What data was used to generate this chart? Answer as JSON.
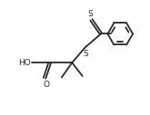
{
  "bg_color": "#ffffff",
  "line_color": "#2a2a2a",
  "line_width": 1.3,
  "text_color": "#2a2a2a",
  "font_size": 6.5,
  "figsize": [
    1.65,
    1.27
  ],
  "dpi": 100,
  "xlim": [
    0,
    10
  ],
  "ylim": [
    0,
    7.7
  ]
}
